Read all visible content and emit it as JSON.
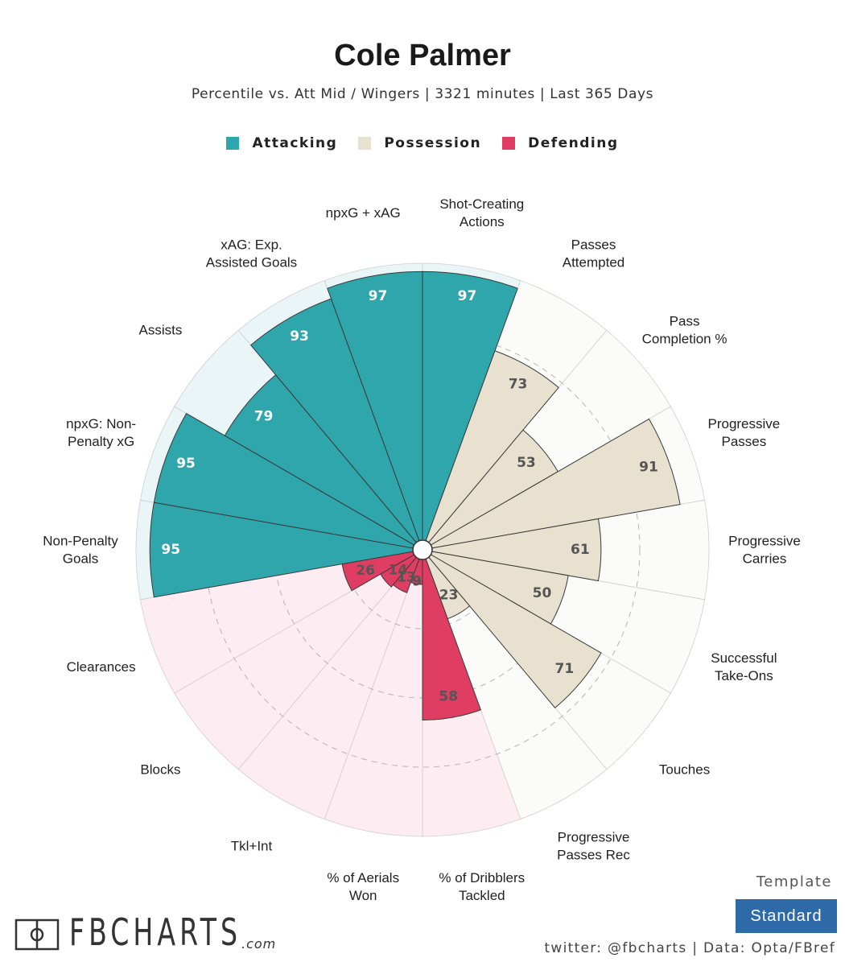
{
  "title": "Cole Palmer",
  "subtitle": "Percentile vs. Att Mid / Wingers | 3321 minutes | Last 365 Days",
  "legend": [
    {
      "label": "Attacking",
      "color": "#2fa6ab"
    },
    {
      "label": "Possession",
      "color": "#e8e1d0"
    },
    {
      "label": "Defending",
      "color": "#e03d62"
    }
  ],
  "chart_data": {
    "type": "radial-bar",
    "range": [
      0,
      100
    ],
    "categories": [
      {
        "label": "Shot-Creating\nActions",
        "value": 97,
        "group": "Attacking"
      },
      {
        "label": "Passes\nAttempted",
        "value": 73,
        "group": "Possession"
      },
      {
        "label": "Pass\nCompletion %",
        "value": 53,
        "group": "Possession"
      },
      {
        "label": "Progressive\nPasses",
        "value": 91,
        "group": "Possession"
      },
      {
        "label": "Progressive\nCarries",
        "value": 61,
        "group": "Possession"
      },
      {
        "label": "Successful\nTake-Ons",
        "value": 50,
        "group": "Possession"
      },
      {
        "label": "Touches",
        "value": 71,
        "group": "Possession"
      },
      {
        "label": "Progressive\nPasses Rec",
        "value": 23,
        "group": "Possession"
      },
      {
        "label": "% of Dribblers\nTackled",
        "value": 58,
        "group": "Defending"
      },
      {
        "label": "% of Aerials\nWon",
        "value": 9,
        "group": "Defending"
      },
      {
        "label": "Tkl+Int",
        "value": 13,
        "group": "Defending"
      },
      {
        "label": "Blocks",
        "value": 14,
        "group": "Defending"
      },
      {
        "label": "Clearances",
        "value": 26,
        "group": "Defending"
      },
      {
        "label": "Non-Penalty\nGoals",
        "value": 95,
        "group": "Attacking"
      },
      {
        "label": "npxG: Non-\nPenalty xG",
        "value": 95,
        "group": "Attacking"
      },
      {
        "label": "Assists",
        "value": 79,
        "group": "Attacking"
      },
      {
        "label": "xAG: Exp.\nAssisted Goals",
        "value": 93,
        "group": "Attacking"
      },
      {
        "label": "npxG + xAG",
        "value": 97,
        "group": "Attacking"
      }
    ],
    "gridlines": [
      25,
      50,
      75
    ],
    "colors": {
      "Attacking": {
        "bar": "#2fa6ab",
        "bg": "#e9f5f6",
        "label": "#ffffff"
      },
      "Possession": {
        "bar": "#e8e1d0",
        "bg": "#fbfbf9",
        "label": "#555555"
      },
      "Defending": {
        "bar": "#e03d62",
        "bg": "#fdecf1",
        "label": "#555555"
      }
    }
  },
  "footer": {
    "brand": "FBCHARTS",
    "brand_suffix": ".com",
    "template_label": "Template",
    "template_value": "Standard",
    "credits": "twitter: @fbcharts | Data: Opta/FBref"
  }
}
